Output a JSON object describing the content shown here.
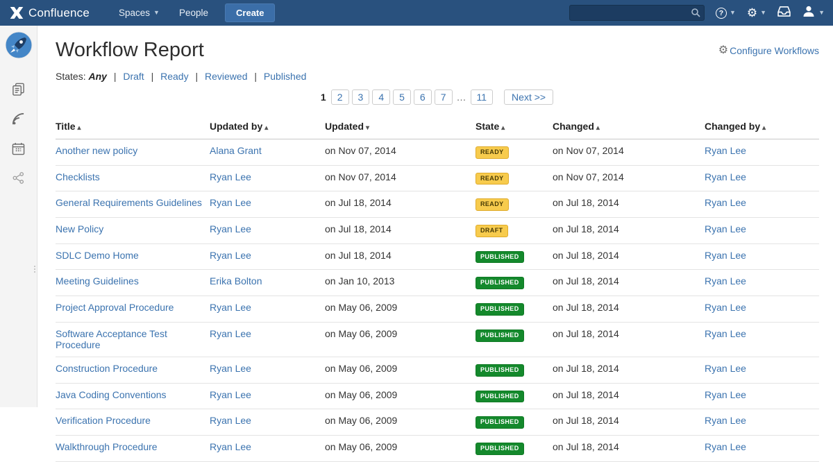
{
  "navbar": {
    "brand": "Confluence",
    "spaces_label": "Spaces",
    "people_label": "People",
    "create_label": "Create",
    "search_placeholder": "",
    "icons": {
      "logo": "confluence-mark",
      "search": "search-icon",
      "help": "help-icon",
      "settings": "gear-icon",
      "notifications": "tray-icon",
      "profile": "avatar-icon"
    },
    "help_glyph": "?",
    "gear_glyph": "⚙"
  },
  "sidebar": {
    "space_logo": "rocket-space-logo",
    "icons": [
      "pages-icon",
      "feed-icon",
      "calendar-icon",
      "share-icon"
    ]
  },
  "page": {
    "title": "Workflow Report",
    "configure_label": "Configure Workflows",
    "configure_gear_glyph": "⚙",
    "states": {
      "label": "States:",
      "selected": "Any",
      "options": [
        "Draft",
        "Ready",
        "Reviewed",
        "Published"
      ],
      "separator": "|"
    },
    "pagination": {
      "current": "1",
      "pages": [
        "2",
        "3",
        "4",
        "5",
        "6",
        "7"
      ],
      "ellipsis": "…",
      "last_page": "11",
      "next_label": "Next >>"
    }
  },
  "table": {
    "columns": [
      {
        "label": "Title",
        "sort": "asc"
      },
      {
        "label": "Updated by",
        "sort": "asc"
      },
      {
        "label": "Updated",
        "sort": "desc"
      },
      {
        "label": "State",
        "sort": "asc"
      },
      {
        "label": "Changed",
        "sort": "asc"
      },
      {
        "label": "Changed by",
        "sort": "asc"
      }
    ],
    "rows": [
      {
        "title": "Another new policy",
        "updated_by": "Alana Grant",
        "updated": "on Nov 07, 2014",
        "state": "READY",
        "state_color": "yellow",
        "changed": "on Nov 07, 2014",
        "changed_by": "Ryan Lee"
      },
      {
        "title": "Checklists",
        "updated_by": "Ryan Lee",
        "updated": "on Nov 07, 2014",
        "state": "READY",
        "state_color": "yellow",
        "changed": "on Nov 07, 2014",
        "changed_by": "Ryan Lee"
      },
      {
        "title": "General Requirements Guidelines",
        "updated_by": "Ryan Lee",
        "updated": "on Jul 18, 2014",
        "state": "READY",
        "state_color": "yellow",
        "changed": "on Jul 18, 2014",
        "changed_by": "Ryan Lee"
      },
      {
        "title": "New Policy",
        "updated_by": "Ryan Lee",
        "updated": "on Jul 18, 2014",
        "state": "DRAFT",
        "state_color": "yellow",
        "changed": "on Jul 18, 2014",
        "changed_by": "Ryan Lee"
      },
      {
        "title": "SDLC Demo Home",
        "updated_by": "Ryan Lee",
        "updated": "on Jul 18, 2014",
        "state": "PUBLISHED",
        "state_color": "green",
        "changed": "on Jul 18, 2014",
        "changed_by": "Ryan Lee"
      },
      {
        "title": "Meeting Guidelines",
        "updated_by": "Erika Bolton",
        "updated": "on Jan 10, 2013",
        "state": "PUBLISHED",
        "state_color": "green",
        "changed": "on Jul 18, 2014",
        "changed_by": "Ryan Lee"
      },
      {
        "title": "Project Approval Procedure",
        "updated_by": "Ryan Lee",
        "updated": "on May 06, 2009",
        "state": "PUBLISHED",
        "state_color": "green",
        "changed": "on Jul 18, 2014",
        "changed_by": "Ryan Lee"
      },
      {
        "title": "Software Acceptance Test Procedure",
        "updated_by": "Ryan Lee",
        "updated": "on May 06, 2009",
        "state": "PUBLISHED",
        "state_color": "green",
        "changed": "on Jul 18, 2014",
        "changed_by": "Ryan Lee"
      },
      {
        "title": "Construction Procedure",
        "updated_by": "Ryan Lee",
        "updated": "on May 06, 2009",
        "state": "PUBLISHED",
        "state_color": "green",
        "changed": "on Jul 18, 2014",
        "changed_by": "Ryan Lee"
      },
      {
        "title": "Java Coding Conventions",
        "updated_by": "Ryan Lee",
        "updated": "on May 06, 2009",
        "state": "PUBLISHED",
        "state_color": "green",
        "changed": "on Jul 18, 2014",
        "changed_by": "Ryan Lee"
      },
      {
        "title": "Verification Procedure",
        "updated_by": "Ryan Lee",
        "updated": "on May 06, 2009",
        "state": "PUBLISHED",
        "state_color": "green",
        "changed": "on Jul 18, 2014",
        "changed_by": "Ryan Lee"
      },
      {
        "title": "Walkthrough Procedure",
        "updated_by": "Ryan Lee",
        "updated": "on May 06, 2009",
        "state": "PUBLISHED",
        "state_color": "green",
        "changed": "on Jul 18, 2014",
        "changed_by": "Ryan Lee"
      }
    ]
  },
  "colors": {
    "navbar_bg": "#29517e",
    "create_button_bg": "#3b6ea8",
    "link": "#3b73af",
    "badge_yellow_bg": "#f7cb4d",
    "badge_yellow_text": "#473a05",
    "badge_green_bg": "#14892c",
    "badge_green_text": "#ffffff"
  }
}
